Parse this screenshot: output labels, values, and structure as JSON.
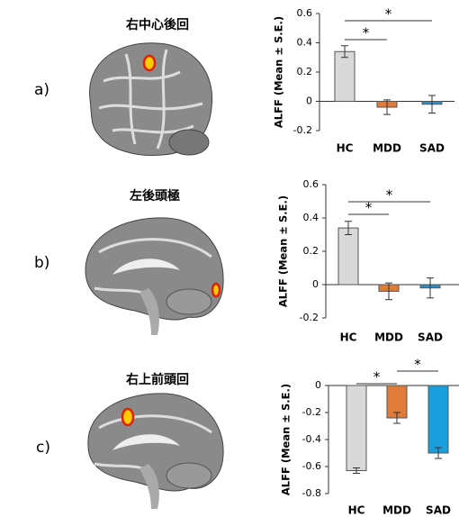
{
  "chart_data": [
    {
      "type": "bar",
      "panel": "a)",
      "title": "右中心後回",
      "ylabel": "ALFF (Mean ± S.E.)",
      "categories": [
        "HC",
        "MDD",
        "SAD"
      ],
      "values": [
        0.34,
        -0.04,
        -0.02
      ],
      "errors": [
        0.04,
        0.05,
        0.06
      ],
      "colors": [
        "#d9d9d9",
        "#e07b39",
        "#2f8fc4"
      ],
      "ylim": [
        -0.2,
        0.6
      ],
      "yticks": [
        -0.2,
        0,
        0.2,
        0.4,
        0.6
      ],
      "significance": [
        {
          "between": [
            "HC",
            "MDD"
          ],
          "label": "*"
        },
        {
          "between": [
            "HC",
            "SAD"
          ],
          "label": "*"
        }
      ]
    },
    {
      "type": "bar",
      "panel": "b)",
      "title": "左後頭極",
      "ylabel": "ALFF (Mean ± S.E.)",
      "categories": [
        "HC",
        "MDD",
        "SAD"
      ],
      "values": [
        0.34,
        -0.04,
        -0.02
      ],
      "errors": [
        0.04,
        0.05,
        0.06
      ],
      "colors": [
        "#d9d9d9",
        "#e07b39",
        "#2f8fc4"
      ],
      "ylim": [
        -0.2,
        0.6
      ],
      "yticks": [
        -0.2,
        0,
        0.2,
        0.4,
        0.6
      ],
      "significance": [
        {
          "between": [
            "HC",
            "MDD"
          ],
          "label": "*"
        },
        {
          "between": [
            "HC",
            "SAD"
          ],
          "label": "*"
        }
      ]
    },
    {
      "type": "bar",
      "panel": "c)",
      "title": "右上前頭回",
      "ylabel": "ALFF (Mean ± S.E.)",
      "categories": [
        "HC",
        "MDD",
        "SAD"
      ],
      "values": [
        -0.63,
        -0.24,
        -0.5
      ],
      "errors": [
        0.02,
        0.04,
        0.04
      ],
      "colors": [
        "#d9d9d9",
        "#e07b39",
        "#1a9fdc"
      ],
      "ylim": [
        -0.8,
        0
      ],
      "yticks": [
        -0.8,
        -0.6,
        -0.4,
        -0.2,
        0
      ],
      "significance": [
        {
          "between": [
            "HC",
            "MDD"
          ],
          "label": "*"
        },
        {
          "between": [
            "MDD",
            "SAD"
          ],
          "label": "*"
        }
      ]
    }
  ]
}
